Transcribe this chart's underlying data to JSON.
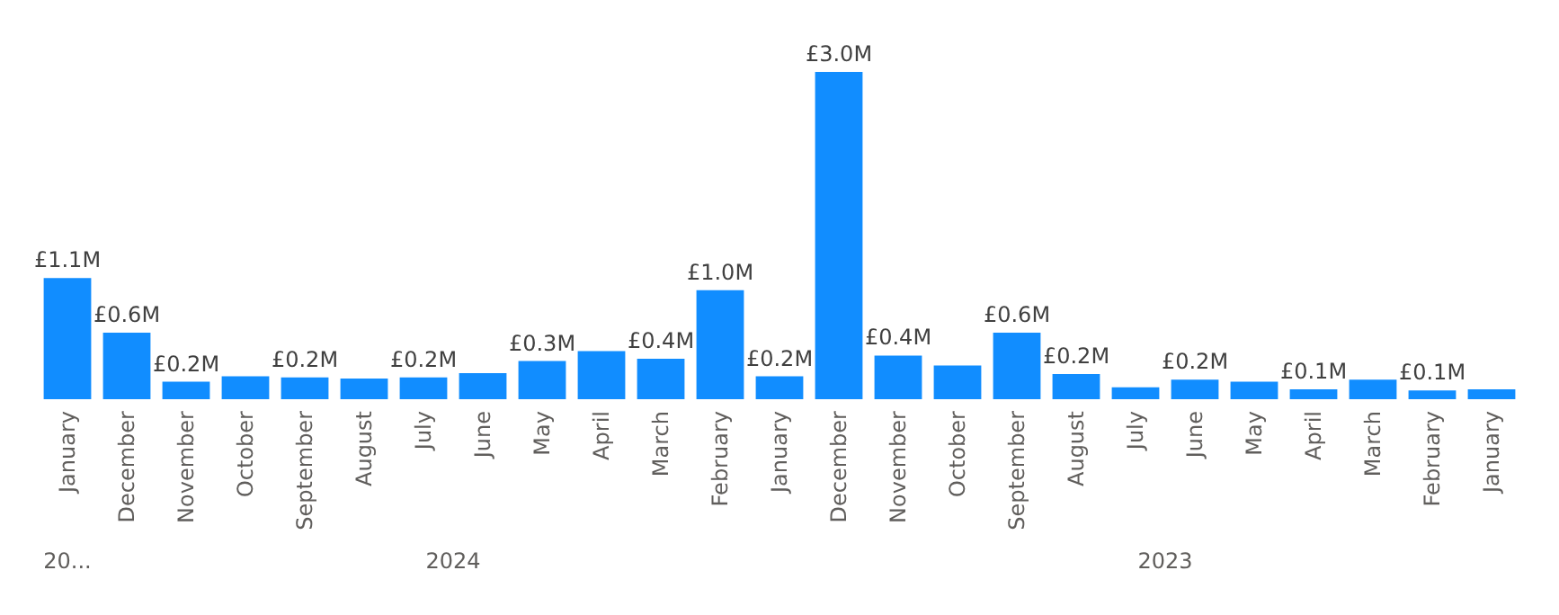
{
  "chart_data": {
    "type": "bar",
    "categories": [
      "January",
      "December",
      "November",
      "October",
      "September",
      "August",
      "July",
      "June",
      "May",
      "April",
      "March",
      "February",
      "January",
      "December",
      "November",
      "October",
      "September",
      "August",
      "July",
      "June",
      "May",
      "April",
      "March",
      "February",
      "January"
    ],
    "values": [
      1.11,
      0.61,
      0.16,
      0.21,
      0.2,
      0.19,
      0.2,
      0.24,
      0.35,
      0.44,
      0.37,
      1.0,
      0.21,
      3.0,
      0.4,
      0.31,
      0.61,
      0.23,
      0.11,
      0.18,
      0.16,
      0.09,
      0.18,
      0.08,
      0.09
    ],
    "value_labels": [
      "£1.1M",
      "£0.6M",
      "£0.2M",
      null,
      "£0.2M",
      null,
      "£0.2M",
      null,
      "£0.3M",
      null,
      "£0.4M",
      "£1.0M",
      "£0.2M",
      "£3.0M",
      "£0.4M",
      null,
      "£0.6M",
      "£0.2M",
      null,
      "£0.2M",
      null,
      "£0.1M",
      null,
      "£0.1M",
      null
    ],
    "annotations": [
      "20...",
      "2024",
      "2023"
    ],
    "color": "#118dff"
  }
}
